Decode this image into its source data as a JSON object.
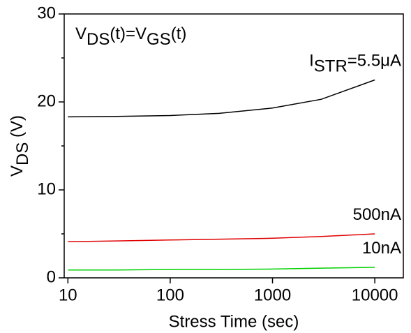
{
  "chart_data": {
    "type": "line",
    "annotation": [
      "V",
      "DS",
      "(t)=V",
      "GS",
      "(t)"
    ],
    "x_label": "Stress Time (sec)",
    "y_label": [
      "V",
      "DS",
      " (V)"
    ],
    "x_log": true,
    "xlim": [
      9.2,
      19000
    ],
    "xticks": [
      10,
      100,
      1000,
      10000
    ],
    "ylim": [
      0,
      30
    ],
    "yticks": [
      0,
      10,
      20,
      30
    ],
    "yminorticks": [
      5,
      15,
      25
    ],
    "x": [
      10,
      30,
      100,
      300,
      1000,
      3000,
      10000
    ],
    "series": [
      {
        "name": [
          "I",
          "STR",
          "=5.5μA"
        ],
        "color": "#000000",
        "values": [
          18.3,
          18.35,
          18.45,
          18.7,
          19.3,
          20.3,
          22.5
        ]
      },
      {
        "name": [
          "500nA"
        ],
        "color": "#e00000",
        "values": [
          4.1,
          4.2,
          4.3,
          4.4,
          4.5,
          4.7,
          5.0
        ]
      },
      {
        "name": [
          "10nA"
        ],
        "color": "#00d000",
        "values": [
          0.9,
          0.9,
          0.95,
          0.95,
          1.0,
          1.1,
          1.2
        ]
      }
    ]
  }
}
